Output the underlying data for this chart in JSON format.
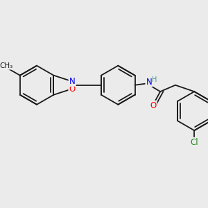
{
  "background_color": "#ebebeb",
  "bond_color": "#1a1a1a",
  "bond_width": 1.3,
  "atom_colors": {
    "O": "#ff0000",
    "N": "#0000ee",
    "Cl": "#228b22",
    "H": "#4a9090",
    "C": "#1a1a1a"
  },
  "font_size": 8.5
}
